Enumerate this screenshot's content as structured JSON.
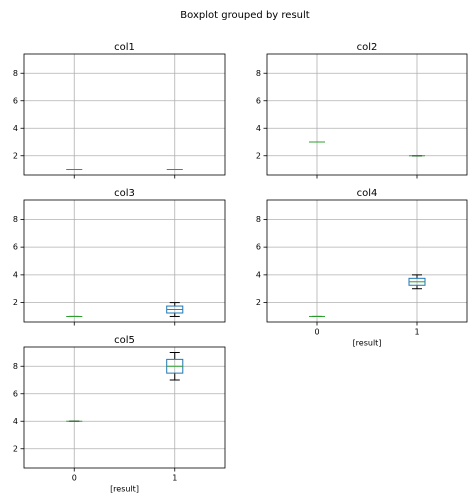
{
  "title": "Boxplot grouped by result",
  "chart_data": [
    {
      "type": "box",
      "title": "col1",
      "categories": [
        null,
        null
      ],
      "xlim": [
        0.5,
        2.5
      ],
      "ylim": [
        0.6,
        9.4
      ],
      "yticks": [
        2,
        4,
        6,
        8
      ],
      "grid": true,
      "box_color": "#1f77b4",
      "median_color": "#2ca02c",
      "boxes": [
        {
          "min": 1,
          "q1": 1,
          "median": 1,
          "q3": 1,
          "max": 1
        },
        {
          "min": 1,
          "q1": 1,
          "median": 1,
          "q3": 1,
          "max": 1
        }
      ]
    },
    {
      "type": "box",
      "title": "col2",
      "categories": [
        null,
        null
      ],
      "xlim": [
        0.5,
        2.5
      ],
      "ylim": [
        0.6,
        9.4
      ],
      "yticks": [
        2,
        4,
        6,
        8
      ],
      "grid": true,
      "box_color": "#1f77b4",
      "median_color": "#2ca02c",
      "boxes": [
        {
          "min": 3,
          "q1": 3,
          "median": 3,
          "q3": 3,
          "max": 3
        },
        {
          "min": 2,
          "q1": 2,
          "median": 2,
          "q3": 2,
          "max": 2
        }
      ]
    },
    {
      "type": "box",
      "title": "col3",
      "categories": [
        null,
        null
      ],
      "xlim": [
        0.5,
        2.5
      ],
      "ylim": [
        0.6,
        9.4
      ],
      "yticks": [
        2,
        4,
        6,
        8
      ],
      "grid": true,
      "box_color": "#1f77b4",
      "median_color": "#2ca02c",
      "boxes": [
        {
          "min": 1,
          "q1": 1,
          "median": 1,
          "q3": 1,
          "max": 1
        },
        {
          "min": 1,
          "q1": 1.25,
          "median": 1.5,
          "q3": 1.75,
          "max": 2
        }
      ]
    },
    {
      "type": "box",
      "title": "col4",
      "xlabel": "[result]",
      "categories": [
        "0",
        "1"
      ],
      "xlim": [
        0.5,
        2.5
      ],
      "ylim": [
        0.6,
        9.4
      ],
      "yticks": [
        2,
        4,
        6,
        8
      ],
      "grid": true,
      "box_color": "#1f77b4",
      "median_color": "#2ca02c",
      "boxes": [
        {
          "min": 1,
          "q1": 1,
          "median": 1,
          "q3": 1,
          "max": 1
        },
        {
          "min": 3,
          "q1": 3.25,
          "median": 3.5,
          "q3": 3.75,
          "max": 4
        }
      ]
    },
    {
      "type": "box",
      "title": "col5",
      "xlabel": "[result]",
      "categories": [
        "0",
        "1"
      ],
      "xlim": [
        0.5,
        2.5
      ],
      "ylim": [
        0.6,
        9.4
      ],
      "yticks": [
        2,
        4,
        6,
        8
      ],
      "grid": true,
      "box_color": "#1f77b4",
      "median_color": "#2ca02c",
      "boxes": [
        {
          "min": 4,
          "q1": 4,
          "median": 4,
          "q3": 4,
          "max": 4
        },
        {
          "min": 7,
          "q1": 7.5,
          "median": 8,
          "q3": 8.5,
          "max": 9
        }
      ]
    }
  ]
}
